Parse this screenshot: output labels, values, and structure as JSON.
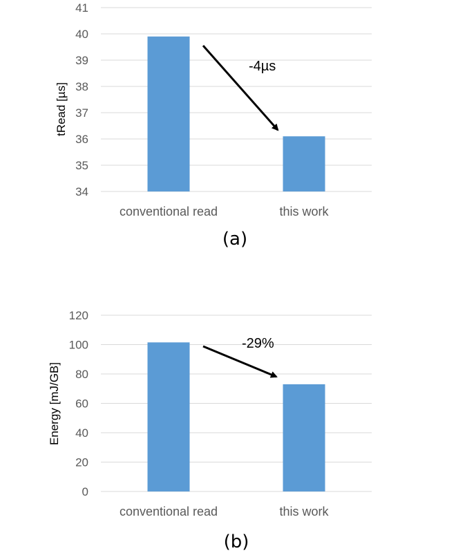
{
  "colors": {
    "bar": "#5b9bd5",
    "grid": "#d9d9d9",
    "tick_text": "#595959",
    "arrow": "#000000"
  },
  "chart_data": [
    {
      "type": "bar",
      "panel_label": "(a)",
      "categories": [
        "conventional read",
        "this work"
      ],
      "values": [
        39.9,
        36.1
      ],
      "ylabel": "tRead [µs]",
      "ylim": [
        34,
        41
      ],
      "yticks": [
        34,
        35,
        36,
        37,
        38,
        39,
        40,
        41
      ],
      "grid": true,
      "annotation": {
        "text": "-4µs",
        "from_category": "conventional read",
        "to_category": "this work"
      }
    },
    {
      "type": "bar",
      "panel_label": "(b)",
      "categories": [
        "conventional read",
        "this work"
      ],
      "values": [
        101.5,
        73
      ],
      "ylabel": "Energy [mJ/GB]",
      "ylim": [
        0,
        120
      ],
      "yticks": [
        0,
        20,
        40,
        60,
        80,
        100,
        120
      ],
      "grid": true,
      "annotation": {
        "text": "-29%",
        "from_category": "conventional read",
        "to_category": "this work"
      }
    }
  ]
}
